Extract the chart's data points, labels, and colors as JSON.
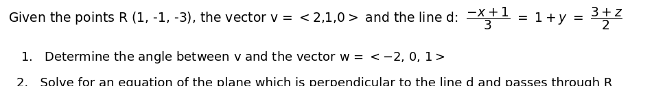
{
  "background_color": "#ffffff",
  "text_color": "#000000",
  "font_size_main": 13.5,
  "font_size_items": 13.0,
  "line1_before": "Given the points R (1, -1, -3), the vector v = ",
  "line1_angle_open": "<",
  "line1_vec": "2,1,0",
  "line1_angle_close": ">",
  "line1_after": " and the line d: ",
  "frac1_num": "-x+1",
  "frac1_den": "3",
  "line1_mid": " = 1 + y = ",
  "frac2_num": "3+z",
  "frac2_den": "2",
  "item1": "1.   Determine the angle between v and the vector w = <-2, 0, 1>",
  "item2": "2.   Solve for an equation of the plane which is perpendicular to the line d and passes through R",
  "fig_width": 9.7,
  "fig_height": 1.26,
  "dpi": 100
}
